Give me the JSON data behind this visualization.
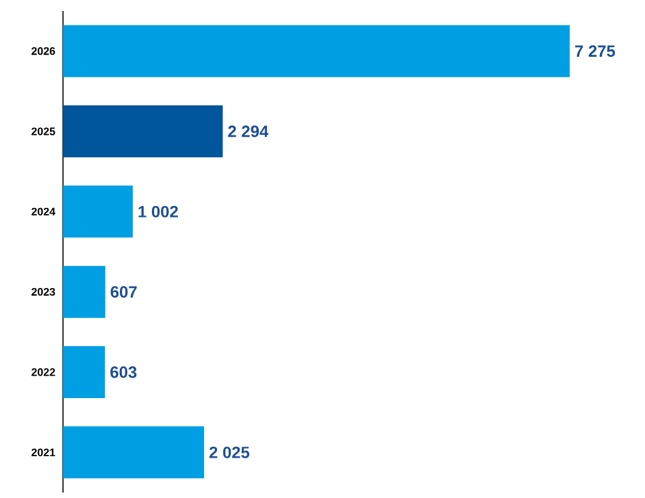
{
  "chart_data": {
    "type": "bar",
    "orientation": "horizontal",
    "categories": [
      "2026",
      "2025",
      "2024",
      "2023",
      "2022",
      "2021"
    ],
    "values": [
      7275,
      2294,
      1002,
      607,
      603,
      2025
    ],
    "value_labels": [
      "7 275",
      "2 294",
      "1 002",
      "607",
      "603",
      "2 025"
    ],
    "colors": [
      "#009fe3",
      "#00569a",
      "#009fe3",
      "#009fe3",
      "#009fe3",
      "#009fe3"
    ]
  }
}
